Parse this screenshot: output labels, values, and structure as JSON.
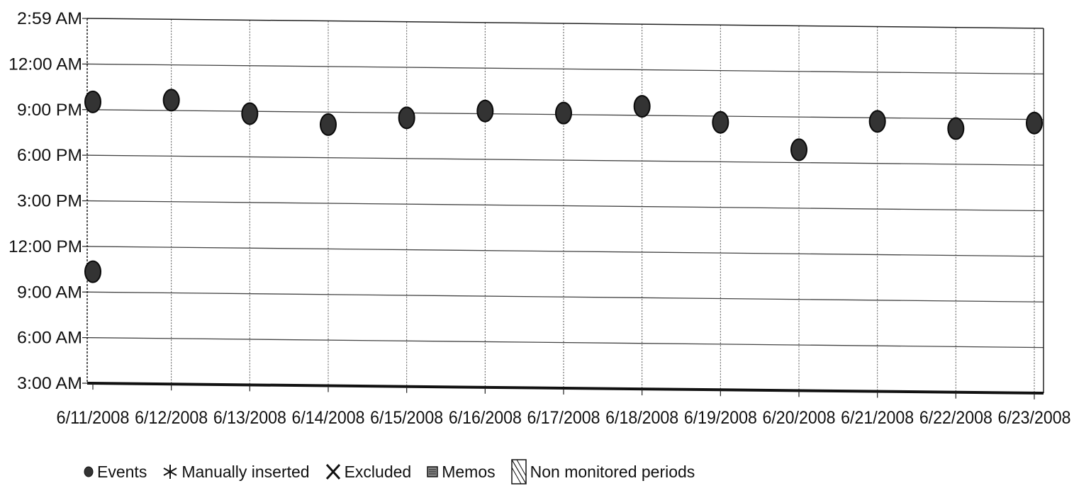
{
  "chart_data": {
    "type": "scatter",
    "title": "",
    "xlabel": "",
    "ylabel": "",
    "x_tick_labels": [
      "6/11/2008",
      "6/12/2008",
      "6/13/2008",
      "6/14/2008",
      "6/15/2008",
      "6/16/2008",
      "6/17/2008",
      "6/18/2008",
      "6/19/2008",
      "6/20/2008",
      "6/21/2008",
      "6/22/2008",
      "6/23/2008"
    ],
    "y_tick_labels": [
      "2:59 AM",
      "12:00 AM",
      "9:00 PM",
      "6:00 PM",
      "3:00 PM",
      "12:00 PM",
      "9:00 AM",
      "6:00 AM",
      "3:00 AM"
    ],
    "y_axis_note": "time of day, inverted axis from 3:00 AM (bottom) to 2:59 AM next day (top)",
    "grid": true,
    "legend_position": "bottom-left",
    "series": [
      {
        "name": "Events",
        "color": "#333333",
        "points": [
          {
            "x": "6/11/2008",
            "y": "21:30"
          },
          {
            "x": "6/11/2008",
            "y": "10:20"
          },
          {
            "x": "6/12/2008",
            "y": "21:40"
          },
          {
            "x": "6/13/2008",
            "y": "20:50"
          },
          {
            "x": "6/14/2008",
            "y": "20:10"
          },
          {
            "x": "6/15/2008",
            "y": "20:40"
          },
          {
            "x": "6/16/2008",
            "y": "21:10"
          },
          {
            "x": "6/17/2008",
            "y": "21:05"
          },
          {
            "x": "6/18/2008",
            "y": "21:35"
          },
          {
            "x": "6/19/2008",
            "y": "20:35"
          },
          {
            "x": "6/20/2008",
            "y": "18:50"
          },
          {
            "x": "6/21/2008",
            "y": "20:45"
          },
          {
            "x": "6/22/2008",
            "y": "20:20"
          },
          {
            "x": "6/23/2008",
            "y": "20:45"
          }
        ]
      }
    ],
    "legend": [
      {
        "label": "Events",
        "icon": "filled-circle-icon"
      },
      {
        "label": "Manually inserted",
        "icon": "asterisk-icon"
      },
      {
        "label": "Excluded",
        "icon": "x-mark-icon"
      },
      {
        "label": "Memos",
        "icon": "memo-square-icon"
      },
      {
        "label": "Non monitored periods",
        "icon": "hatched-box-icon"
      }
    ]
  }
}
